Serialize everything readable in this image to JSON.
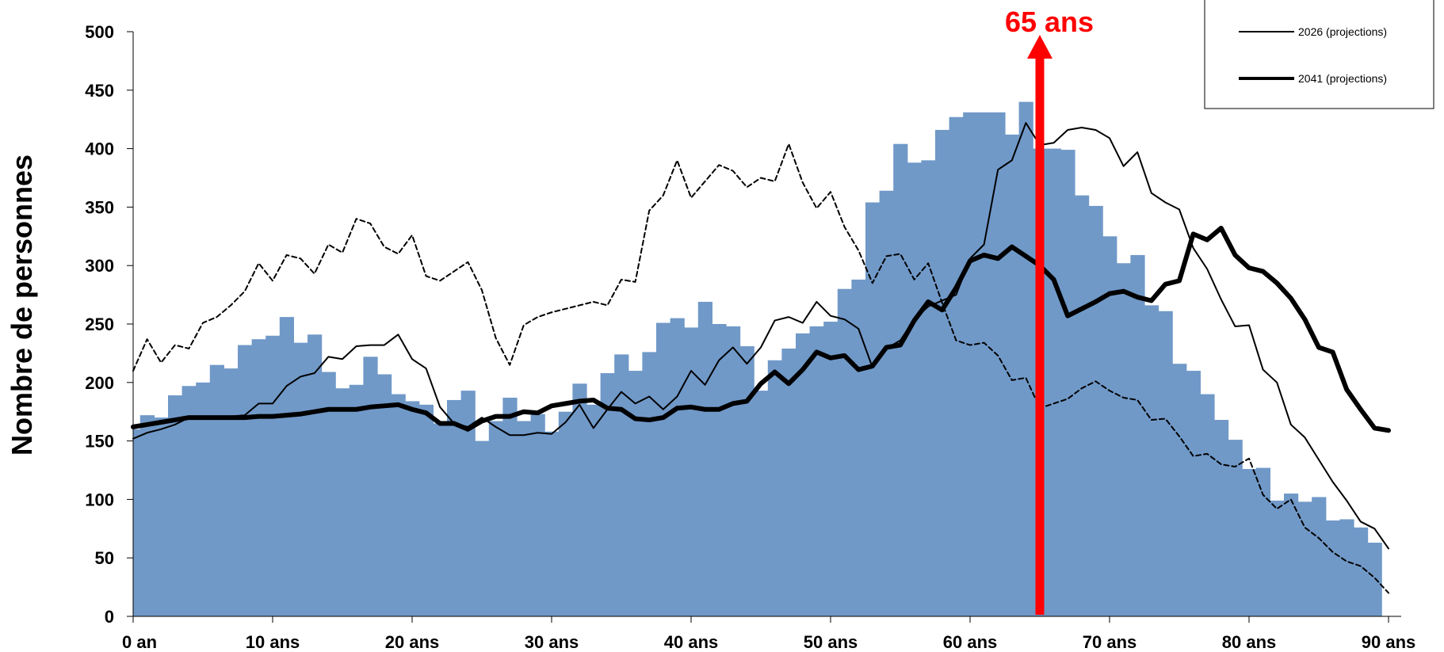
{
  "chart_data": {
    "type": "bar",
    "title": "",
    "xlabel": "",
    "ylabel": "Nombre de personnes",
    "ylim": [
      0,
      500
    ],
    "xlim": [
      0,
      90
    ],
    "y_ticks": [
      0,
      50,
      100,
      150,
      200,
      250,
      300,
      350,
      400,
      450,
      500
    ],
    "x_ticks": [
      {
        "value": 0,
        "label": "0 an"
      },
      {
        "value": 10,
        "label": "10 ans"
      },
      {
        "value": 20,
        "label": "20 ans"
      },
      {
        "value": 30,
        "label": "30 ans"
      },
      {
        "value": 40,
        "label": "40 ans"
      },
      {
        "value": 50,
        "label": "50 ans"
      },
      {
        "value": 60,
        "label": "60 ans"
      },
      {
        "value": 70,
        "label": "70 ans"
      },
      {
        "value": 80,
        "label": "80 ans"
      },
      {
        "value": 90,
        "label": "90 ans"
      }
    ],
    "grid": false,
    "legend_position": "top-right",
    "bar_color": "#7099c8",
    "bars": {
      "ages": [
        0,
        1,
        2,
        3,
        4,
        5,
        6,
        7,
        8,
        9,
        10,
        11,
        12,
        13,
        14,
        15,
        16,
        17,
        18,
        19,
        20,
        21,
        22,
        23,
        24,
        25,
        26,
        27,
        28,
        29,
        30,
        31,
        32,
        33,
        34,
        35,
        36,
        37,
        38,
        39,
        40,
        41,
        42,
        43,
        44,
        45,
        46,
        47,
        48,
        49,
        50,
        51,
        52,
        53,
        54,
        55,
        56,
        57,
        58,
        59,
        60,
        61,
        62,
        63,
        64,
        65,
        66,
        67,
        68,
        69,
        70,
        71,
        72,
        73,
        74,
        75,
        76,
        77,
        78,
        79,
        80,
        81,
        82,
        83,
        84,
        85,
        86,
        87,
        88,
        89,
        90
      ],
      "values": [
        160,
        172,
        170,
        189,
        197,
        200,
        215,
        212,
        232,
        237,
        240,
        256,
        234,
        241,
        209,
        195,
        198,
        222,
        207,
        190,
        184,
        181,
        165,
        185,
        193,
        150,
        167,
        187,
        167,
        173,
        158,
        175,
        199,
        181,
        208,
        224,
        210,
        226,
        251,
        255,
        247,
        269,
        250,
        248,
        231,
        193,
        219,
        229,
        242,
        248,
        252,
        280,
        288,
        354,
        364,
        404,
        388,
        390,
        416,
        427,
        431,
        431,
        431,
        412,
        440,
        400,
        400,
        399,
        360,
        351,
        325,
        302,
        309,
        266,
        261,
        216,
        210,
        190,
        168,
        151,
        126,
        127,
        99,
        105,
        98,
        102,
        82,
        83,
        76,
        63,
        0
      ]
    },
    "series": [
      {
        "name": "",
        "style": "dashed-thin",
        "x": [
          0,
          1,
          2,
          3,
          4,
          5,
          6,
          7,
          8,
          9,
          10,
          11,
          12,
          13,
          14,
          15,
          16,
          17,
          18,
          19,
          20,
          21,
          22,
          23,
          24,
          25,
          26,
          27,
          28,
          29,
          30,
          31,
          32,
          33,
          34,
          35,
          36,
          37,
          38,
          39,
          40,
          41,
          42,
          43,
          44,
          45,
          46,
          47,
          48,
          49,
          50,
          51,
          52,
          53,
          54,
          55,
          56,
          57,
          58,
          59,
          60,
          61,
          62,
          63,
          64,
          65,
          66,
          67,
          68,
          69,
          70,
          71,
          72,
          73,
          74,
          75,
          76,
          77,
          78,
          79,
          80,
          81,
          82,
          83,
          84,
          85,
          86,
          87,
          88,
          89,
          90
        ],
        "values": [
          210,
          237,
          217,
          232,
          229,
          251,
          256,
          266,
          278,
          302,
          287,
          309,
          306,
          293,
          318,
          311,
          340,
          336,
          316,
          310,
          326,
          291,
          287,
          295,
          303,
          279,
          238,
          215,
          249,
          256,
          260,
          263,
          266,
          269,
          266,
          288,
          286,
          347,
          360,
          390,
          358,
          372,
          386,
          381,
          367,
          375,
          372,
          404,
          371,
          349,
          363,
          333,
          313,
          285,
          308,
          310,
          288,
          302,
          268,
          236,
          232,
          234,
          223,
          202,
          204,
          178,
          182,
          186,
          195,
          201,
          193,
          187,
          185,
          168,
          169,
          154,
          137,
          139,
          130,
          128,
          135,
          104,
          92,
          100,
          76,
          67,
          55,
          47,
          43,
          33,
          20
        ]
      },
      {
        "name": "2026 (projections)",
        "style": "solid-thin",
        "x": [
          0,
          1,
          2,
          3,
          4,
          5,
          6,
          7,
          8,
          9,
          10,
          11,
          12,
          13,
          14,
          15,
          16,
          17,
          18,
          19,
          20,
          21,
          22,
          23,
          24,
          25,
          26,
          27,
          28,
          29,
          30,
          31,
          32,
          33,
          34,
          35,
          36,
          37,
          38,
          39,
          40,
          41,
          42,
          43,
          44,
          45,
          46,
          47,
          48,
          49,
          50,
          51,
          52,
          53,
          54,
          55,
          56,
          57,
          58,
          59,
          60,
          61,
          62,
          63,
          64,
          65,
          66,
          67,
          68,
          69,
          70,
          71,
          72,
          73,
          74,
          75,
          76,
          77,
          78,
          79,
          80,
          81,
          82,
          83,
          84,
          85,
          86,
          87,
          88,
          89,
          90
        ],
        "values": [
          152,
          157,
          160,
          164,
          170,
          170,
          169,
          171,
          172,
          182,
          182,
          197,
          205,
          208,
          222,
          220,
          231,
          232,
          232,
          241,
          220,
          212,
          179,
          165,
          162,
          170,
          162,
          155,
          155,
          157,
          156,
          166,
          181,
          161,
          177,
          192,
          182,
          188,
          177,
          188,
          210,
          198,
          219,
          230,
          216,
          230,
          253,
          256,
          251,
          269,
          257,
          254,
          246,
          213,
          229,
          236,
          254,
          265,
          270,
          275,
          306,
          318,
          382,
          390,
          422,
          403,
          405,
          416,
          418,
          416,
          409,
          385,
          397,
          362,
          354,
          348,
          315,
          297,
          271,
          248,
          249,
          211,
          200,
          164,
          153,
          134,
          115,
          99,
          81,
          75,
          58
        ]
      },
      {
        "name": "2041 (projections)",
        "style": "solid-thick",
        "x": [
          0,
          1,
          2,
          3,
          4,
          5,
          6,
          7,
          8,
          9,
          10,
          11,
          12,
          13,
          14,
          15,
          16,
          17,
          18,
          19,
          20,
          21,
          22,
          23,
          24,
          25,
          26,
          27,
          28,
          29,
          30,
          31,
          32,
          33,
          34,
          35,
          36,
          37,
          38,
          39,
          40,
          41,
          42,
          43,
          44,
          45,
          46,
          47,
          48,
          49,
          50,
          51,
          52,
          53,
          54,
          55,
          56,
          57,
          58,
          59,
          60,
          61,
          62,
          63,
          64,
          65,
          66,
          67,
          68,
          69,
          70,
          71,
          72,
          73,
          74,
          75,
          76,
          77,
          78,
          79,
          80,
          81,
          82,
          83,
          84,
          85,
          86,
          87,
          88,
          89,
          90
        ],
        "values": [
          162,
          164,
          166,
          168,
          170,
          170,
          170,
          170,
          170,
          171,
          171,
          172,
          173,
          175,
          177,
          177,
          177,
          179,
          180,
          181,
          177,
          174,
          165,
          165,
          160,
          167,
          171,
          171,
          175,
          174,
          180,
          182,
          184,
          185,
          178,
          177,
          169,
          168,
          170,
          178,
          179,
          177,
          177,
          182,
          184,
          199,
          209,
          199,
          211,
          226,
          221,
          223,
          211,
          214,
          230,
          232,
          253,
          269,
          262,
          281,
          304,
          309,
          306,
          316,
          308,
          300,
          288,
          257,
          263,
          269,
          276,
          278,
          273,
          270,
          284,
          287,
          327,
          322,
          332,
          309,
          298,
          295,
          285,
          272,
          254,
          230,
          226,
          194,
          177,
          161,
          159
        ]
      }
    ],
    "annotations": [
      {
        "text": "65 ans",
        "x": 65,
        "color": "#ff0000",
        "type": "vertical-arrow"
      }
    ]
  },
  "legend": {
    "items": [
      {
        "label": "2026 (projections)",
        "style": "solid-thin"
      },
      {
        "label": "2041 (projections)",
        "style": "solid-thick"
      }
    ]
  },
  "annotation_text": "65 ans"
}
